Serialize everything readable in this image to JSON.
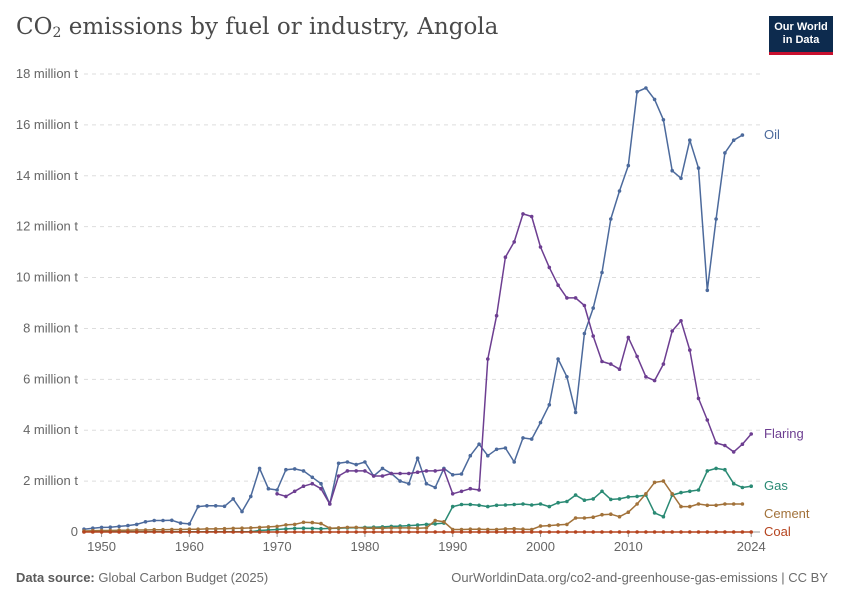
{
  "header": {
    "title_prefix": "CO",
    "title_sub": "2",
    "title_suffix": " emissions by fuel or industry, Angola"
  },
  "logo": {
    "line1": "Our World",
    "line2": "in Data"
  },
  "footer": {
    "source_label": "Data source:",
    "source_value": " Global Carbon Budget (2025)",
    "link": "OurWorldinData.org/co2-and-greenhouse-gas-emissions | CC BY"
  },
  "colors": {
    "oil": "#4c6a9c",
    "flaring": "#6d3e91",
    "gas": "#2a8a74",
    "cement": "#a2723a",
    "coal": "#b5441f",
    "grid": "#dddddd",
    "text": "#5b5b5b"
  },
  "chart_data": {
    "type": "line",
    "title": "CO₂ emissions by fuel or industry, Angola",
    "xlim": [
      1948,
      2025
    ],
    "ylim": [
      0,
      18000000
    ],
    "x_ticks": [
      {
        "value": 1950,
        "label": "1950"
      },
      {
        "value": 1960,
        "label": "1960"
      },
      {
        "value": 1970,
        "label": "1970"
      },
      {
        "value": 1980,
        "label": "1980"
      },
      {
        "value": 1990,
        "label": "1990"
      },
      {
        "value": 2000,
        "label": "2000"
      },
      {
        "value": 2010,
        "label": "2010"
      },
      {
        "value": 2024,
        "label": "2024"
      }
    ],
    "y_ticks": [
      {
        "value": 0,
        "label": "0"
      },
      {
        "value": 2000000,
        "label": "2 million t"
      },
      {
        "value": 4000000,
        "label": "4 million t"
      },
      {
        "value": 6000000,
        "label": "6 million t"
      },
      {
        "value": 8000000,
        "label": "8 million t"
      },
      {
        "value": 10000000,
        "label": "10 million t"
      },
      {
        "value": 12000000,
        "label": "12 million t"
      },
      {
        "value": 14000000,
        "label": "14 million t"
      },
      {
        "value": 16000000,
        "label": "16 million t"
      },
      {
        "value": 18000000,
        "label": "18 million t"
      }
    ],
    "grid": true,
    "legend": "end-labels",
    "series": [
      {
        "key": "oil",
        "name": "Oil",
        "start": 1948,
        "values": [
          110000,
          150000,
          180000,
          190000,
          220000,
          250000,
          300000,
          400000,
          450000,
          450000,
          460000,
          350000,
          320000,
          1000000,
          1030000,
          1030000,
          1010000,
          1300000,
          800000,
          1400000,
          2500000,
          1700000,
          1650000,
          2450000,
          2480000,
          2400000,
          2150000,
          1900000,
          1100000,
          2700000,
          2750000,
          2650000,
          2750000,
          2200000,
          2500000,
          2300000,
          2000000,
          1900000,
          2900000,
          1900000,
          1750000,
          2500000,
          2250000,
          2280000,
          3000000,
          3450000,
          3000000,
          3250000,
          3300000,
          2750000,
          3700000,
          3650000,
          4300000,
          5000000,
          6800000,
          6100000,
          4700000,
          7800000,
          8800000,
          10200000,
          12300000,
          13400000,
          14400000,
          17300000,
          17450000,
          17000000,
          16200000,
          14200000,
          13900000,
          15400000,
          14300000,
          9500000,
          12300000,
          14900000,
          15400000,
          15600000
        ]
      },
      {
        "key": "flaring",
        "name": "Flaring",
        "start": 1970,
        "values": [
          1500000,
          1400000,
          1600000,
          1800000,
          1900000,
          1700000,
          1100000,
          2200000,
          2400000,
          2400000,
          2400000,
          2200000,
          2200000,
          2300000,
          2300000,
          2300000,
          2350000,
          2400000,
          2400000,
          2450000,
          1500000,
          1600000,
          1700000,
          1650000,
          6800000,
          8500000,
          10800000,
          11400000,
          12500000,
          12400000,
          11200000,
          10400000,
          9700000,
          9200000,
          9200000,
          8900000,
          7700000,
          6700000,
          6600000,
          6400000,
          7650000,
          6900000,
          6100000,
          5950000,
          6600000,
          7900000,
          8300000,
          7150000,
          5250000,
          4400000,
          3500000,
          3400000,
          3150000,
          3450000,
          3850000
        ]
      },
      {
        "key": "gas",
        "name": "Gas",
        "start": 1948,
        "values": [
          10000,
          10000,
          10000,
          10000,
          10000,
          10000,
          10000,
          10000,
          10000,
          10000,
          10000,
          10000,
          10000,
          10000,
          10000,
          10000,
          10000,
          10000,
          10000,
          10000,
          60000,
          80000,
          100000,
          120000,
          140000,
          150000,
          140000,
          130000,
          140000,
          150000,
          160000,
          170000,
          180000,
          190000,
          200000,
          220000,
          230000,
          250000,
          270000,
          300000,
          320000,
          350000,
          1000000,
          1080000,
          1080000,
          1050000,
          1000000,
          1050000,
          1060000,
          1080000,
          1100000,
          1060000,
          1100000,
          1000000,
          1150000,
          1200000,
          1450000,
          1250000,
          1300000,
          1600000,
          1280000,
          1300000,
          1380000,
          1400000,
          1450000,
          750000,
          600000,
          1450000,
          1550000,
          1600000,
          1650000,
          2400000,
          2500000,
          2450000,
          1900000,
          1750000,
          1800000
        ]
      },
      {
        "key": "cement",
        "name": "Cement",
        "start": 1948,
        "values": [
          40000,
          50000,
          60000,
          60000,
          70000,
          70000,
          80000,
          80000,
          90000,
          90000,
          100000,
          100000,
          110000,
          110000,
          120000,
          120000,
          130000,
          140000,
          150000,
          160000,
          180000,
          200000,
          220000,
          280000,
          300000,
          380000,
          370000,
          330000,
          150000,
          160000,
          180000,
          180000,
          150000,
          150000,
          150000,
          160000,
          160000,
          160000,
          150000,
          160000,
          450000,
          400000,
          100000,
          100000,
          110000,
          110000,
          100000,
          100000,
          120000,
          130000,
          110000,
          100000,
          230000,
          250000,
          280000,
          300000,
          550000,
          550000,
          580000,
          680000,
          700000,
          600000,
          780000,
          1100000,
          1500000,
          1950000,
          2000000,
          1500000,
          1000000,
          1000000,
          1100000,
          1050000,
          1050000,
          1100000,
          1100000,
          1100000
        ]
      },
      {
        "key": "coal",
        "name": "Coal",
        "start": 1948,
        "values": [
          0,
          0,
          0,
          0,
          0,
          0,
          0,
          0,
          0,
          0,
          0,
          0,
          0,
          0,
          0,
          0,
          0,
          0,
          0,
          0,
          0,
          0,
          0,
          0,
          0,
          0,
          0,
          0,
          0,
          0,
          0,
          0,
          0,
          0,
          0,
          0,
          0,
          0,
          0,
          0,
          0,
          0,
          0,
          0,
          0,
          0,
          0,
          0,
          0,
          0,
          0,
          0,
          0,
          0,
          0,
          0,
          0,
          0,
          0,
          0,
          0,
          0,
          0,
          0,
          0,
          0,
          0,
          0,
          0,
          0,
          0,
          0,
          0,
          0,
          0,
          0,
          0
        ]
      }
    ],
    "end_labels": [
      {
        "key": "oil",
        "text": "Oil"
      },
      {
        "key": "flaring",
        "text": "Flaring"
      },
      {
        "key": "gas",
        "text": "Gas"
      },
      {
        "key": "cement",
        "text": "Cement"
      },
      {
        "key": "coal",
        "text": "Coal"
      }
    ]
  }
}
